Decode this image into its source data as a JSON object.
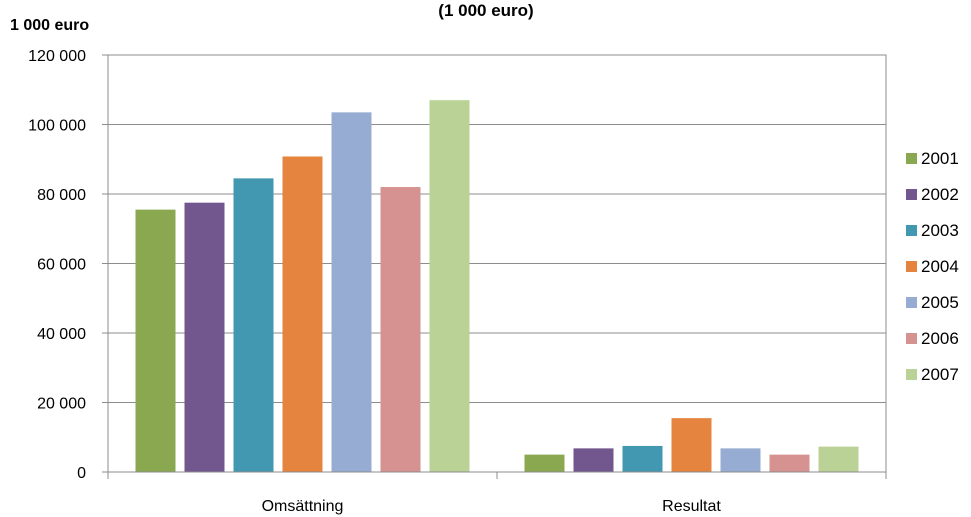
{
  "chart_data": {
    "type": "bar",
    "title": "(1 000 euro)",
    "ylabel": "1 000 euro",
    "xlabel": "",
    "ylim": [
      0,
      120000
    ],
    "yticks": [
      0,
      20000,
      40000,
      60000,
      80000,
      100000,
      120000
    ],
    "ytick_labels": [
      "0",
      "20 000",
      "40 000",
      "60 000",
      "80 000",
      "100 000",
      "120 000"
    ],
    "categories": [
      "Omsättning",
      "Resultat"
    ],
    "grid": true,
    "legend_position": "right",
    "series": [
      {
        "name": "2001",
        "color": "#8aa84f",
        "values": [
          75500,
          5000
        ]
      },
      {
        "name": "2002",
        "color": "#72578f",
        "values": [
          77500,
          6800
        ]
      },
      {
        "name": "2003",
        "color": "#4298b0",
        "values": [
          84500,
          7500
        ]
      },
      {
        "name": "2004",
        "color": "#e5843e",
        "values": [
          90800,
          15500
        ]
      },
      {
        "name": "2005",
        "color": "#97acd3",
        "values": [
          103500,
          6800
        ]
      },
      {
        "name": "2006",
        "color": "#d69290",
        "values": [
          82000,
          5000
        ]
      },
      {
        "name": "2007",
        "color": "#bbd297",
        "values": [
          107000,
          7300
        ]
      }
    ]
  }
}
